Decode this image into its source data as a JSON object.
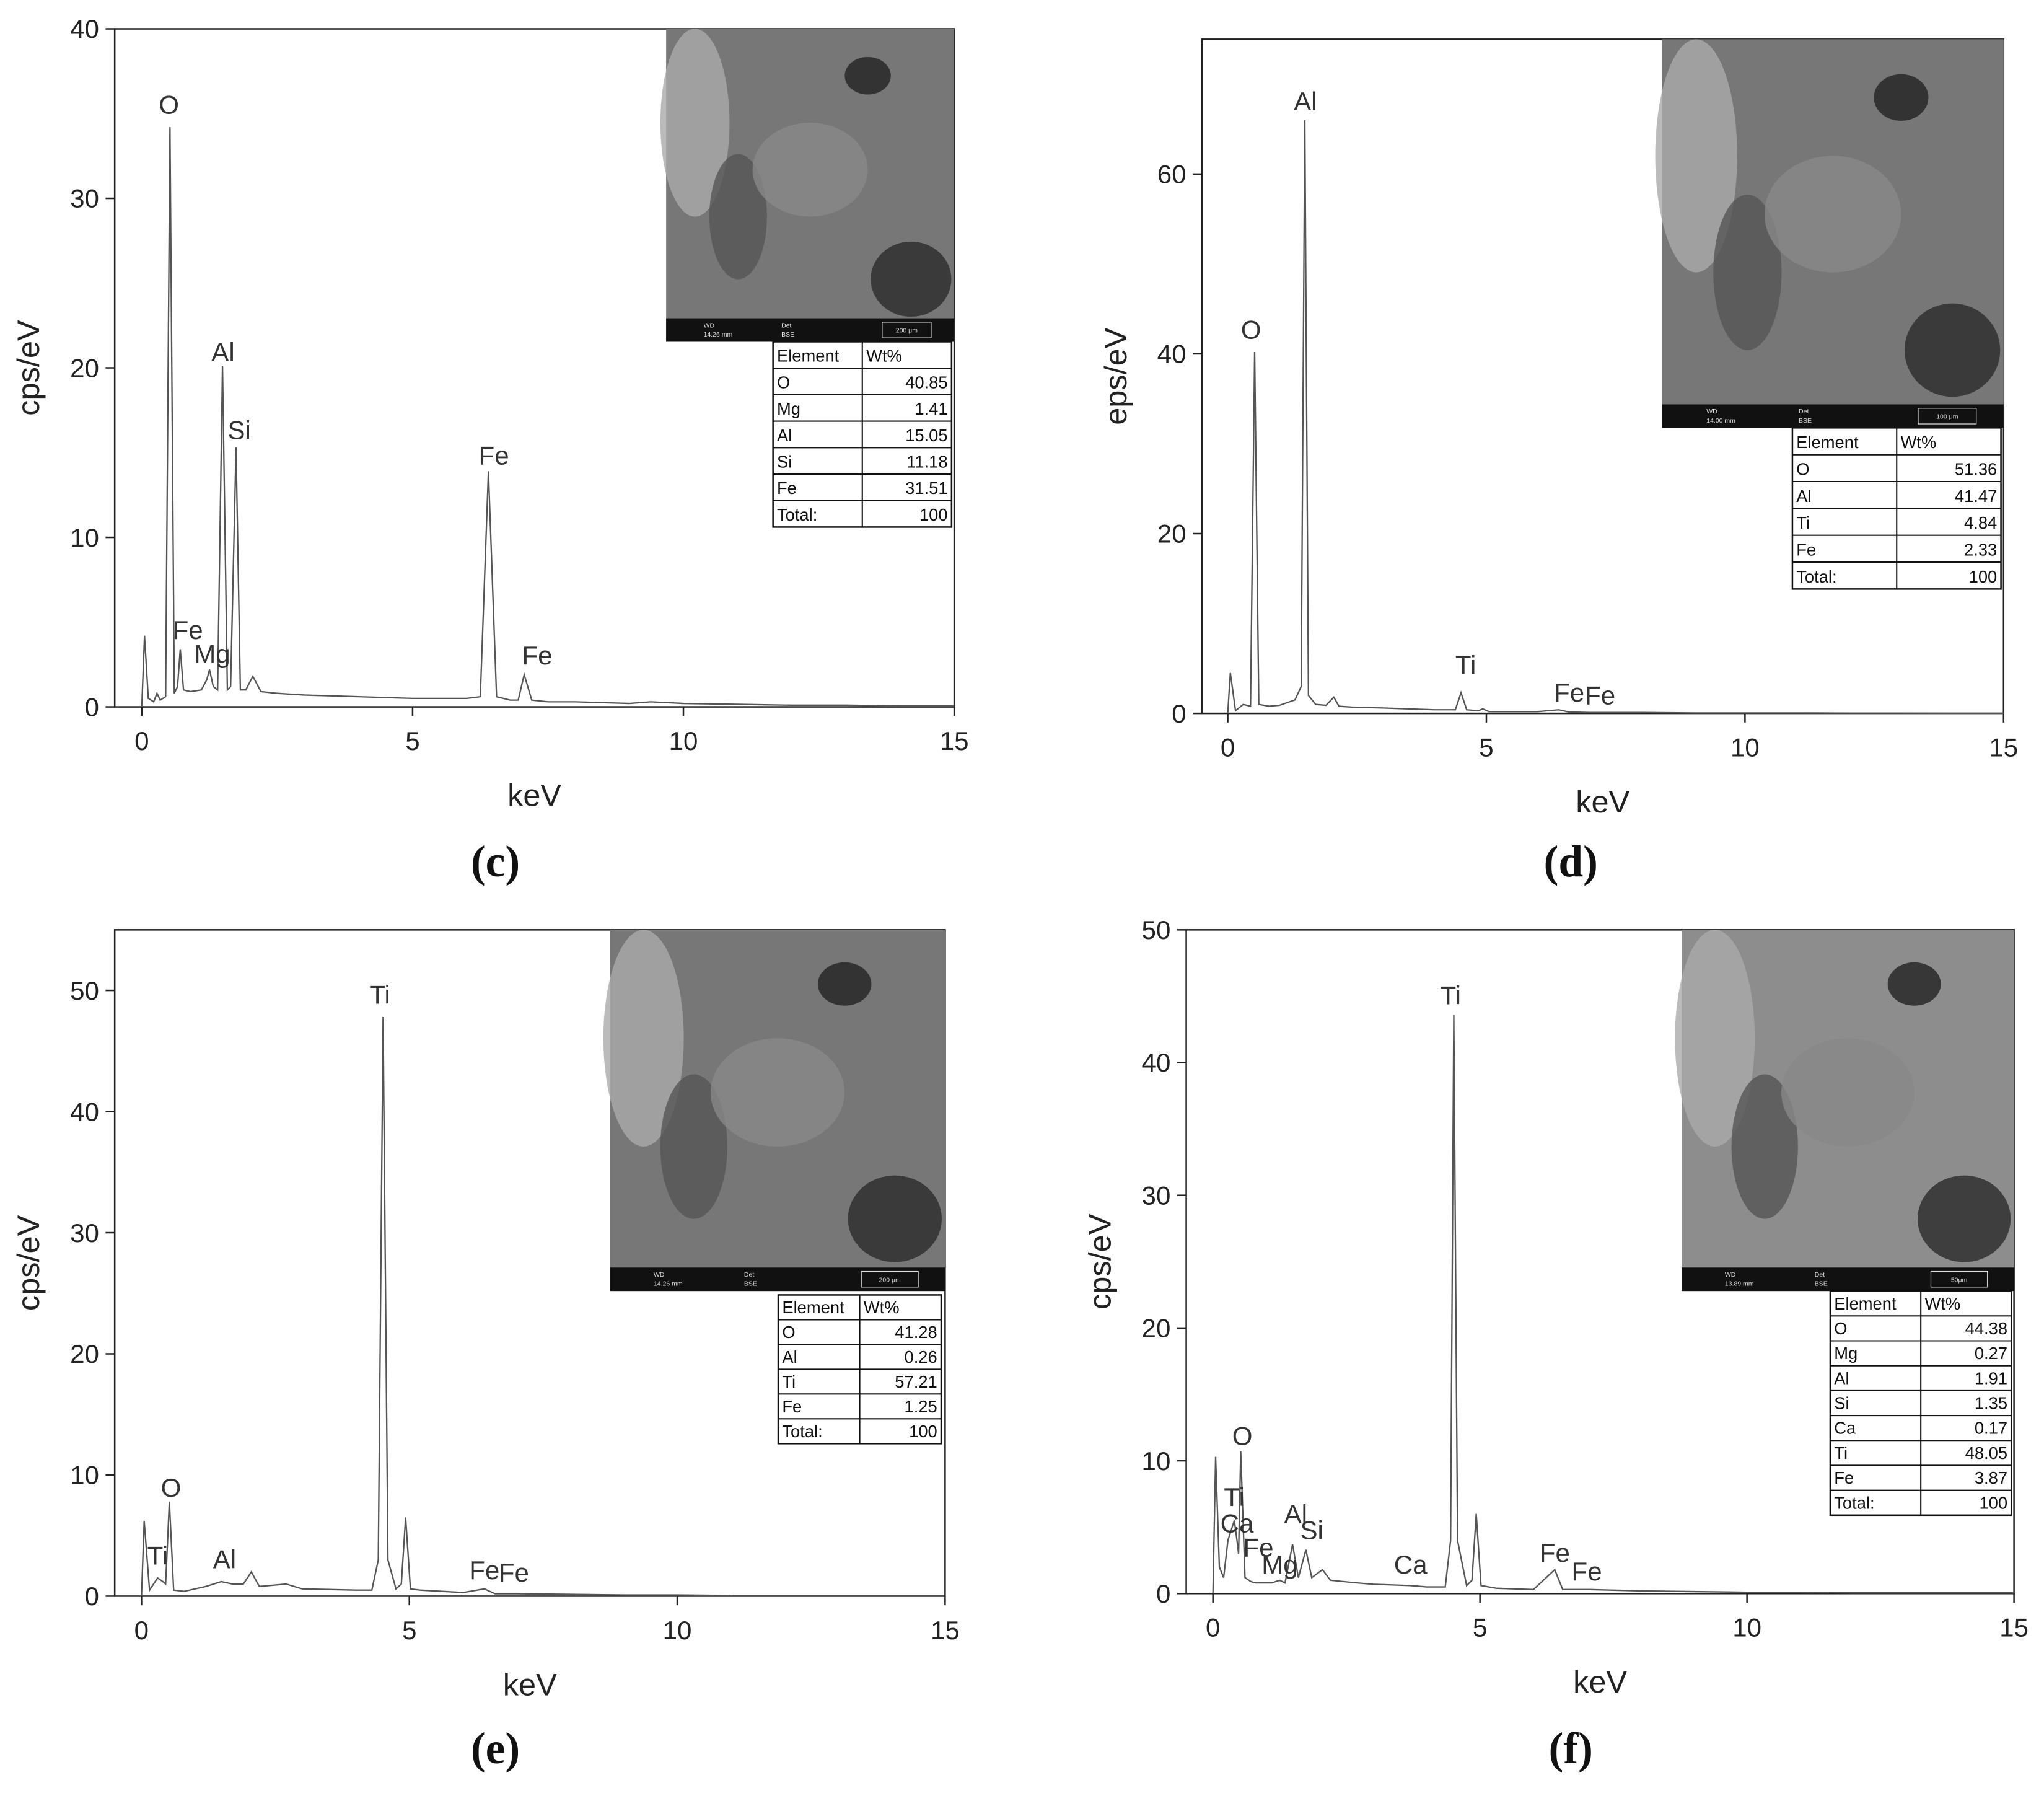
{
  "chart_data": [
    {
      "type": "line",
      "label": "(c)",
      "xlabel": "keV",
      "ylabel": "cps/eV",
      "color": "#555555",
      "xlim": [
        -0.5,
        15
      ],
      "ylim": [
        0,
        40
      ],
      "xticks": [
        0,
        5,
        10,
        15
      ],
      "yticks": [
        0,
        10,
        20,
        30,
        40
      ],
      "x": [
        0,
        0.05,
        0.12,
        0.22,
        0.28,
        0.34,
        0.44,
        0.52,
        0.6,
        0.66,
        0.71,
        0.77,
        0.9,
        1.1,
        1.2,
        1.25,
        1.32,
        1.4,
        1.49,
        1.58,
        1.64,
        1.74,
        1.82,
        1.92,
        2.05,
        2.2,
        2.5,
        3,
        4,
        5,
        5.5,
        6,
        6.25,
        6.4,
        6.55,
        6.8,
        6.95,
        7.06,
        7.2,
        7.5,
        8,
        9,
        9.4,
        10,
        11,
        12,
        13,
        14,
        15
      ],
      "values": [
        0,
        4.2,
        0.5,
        0.3,
        0.8,
        0.4,
        0.6,
        34.2,
        0.8,
        1.2,
        3.4,
        1.0,
        0.9,
        1.0,
        1.6,
        2.2,
        1.2,
        1.0,
        20.1,
        1.0,
        1.2,
        15.3,
        1.0,
        1.0,
        1.8,
        0.9,
        0.8,
        0.7,
        0.6,
        0.5,
        0.5,
        0.5,
        0.6,
        13.9,
        0.6,
        0.4,
        0.4,
        1.9,
        0.4,
        0.3,
        0.3,
        0.2,
        0.3,
        0.2,
        0.15,
        0.1,
        0.1,
        0.05,
        0.05
      ],
      "annotations": [
        {
          "text": "O",
          "x": 0.5,
          "y": 35
        },
        {
          "text": "Al",
          "x": 1.5,
          "y": 20.4
        },
        {
          "text": "Si",
          "x": 1.8,
          "y": 15.8
        },
        {
          "text": "Fe",
          "x": 0.85,
          "y": 4.0
        },
        {
          "text": "Mg",
          "x": 1.3,
          "y": 2.6
        },
        {
          "text": "Fe",
          "x": 6.5,
          "y": 14.3
        },
        {
          "text": "Fe",
          "x": 7.3,
          "y": 2.5
        }
      ],
      "inset": {
        "wd_label": "WD",
        "wd": "14.26 mm",
        "det_label": "Det",
        "detector": "BSE",
        "scale": "200 μm"
      },
      "table": {
        "header": [
          "Element",
          "Wt%"
        ],
        "rows": [
          [
            "O",
            40.85
          ],
          [
            "Mg",
            1.41
          ],
          [
            "Al",
            15.05
          ],
          [
            "Si",
            11.18
          ],
          [
            "Fe",
            31.51
          ],
          [
            "Total:",
            100
          ]
        ]
      }
    },
    {
      "type": "line",
      "label": "(d)",
      "xlabel": "keV",
      "ylabel": "eps/eV",
      "color": "#555555",
      "xlim": [
        -0.5,
        15
      ],
      "ylim": [
        0,
        75
      ],
      "xticks": [
        0,
        5,
        10,
        15
      ],
      "yticks": [
        0,
        20,
        40,
        60
      ],
      "x": [
        0,
        0.05,
        0.15,
        0.3,
        0.44,
        0.52,
        0.6,
        0.8,
        1.0,
        1.3,
        1.42,
        1.49,
        1.56,
        1.7,
        1.9,
        2.05,
        2.15,
        2.4,
        3,
        4,
        4.4,
        4.51,
        4.62,
        4.85,
        4.93,
        5.05,
        5.5,
        6,
        6.4,
        6.6,
        7,
        8,
        9,
        10,
        11,
        12,
        13,
        14,
        15
      ],
      "values": [
        0,
        4.5,
        0.3,
        1.0,
        0.8,
        40.2,
        1.0,
        0.8,
        0.9,
        1.5,
        3,
        66,
        2,
        1.0,
        0.9,
        1.8,
        0.8,
        0.7,
        0.6,
        0.4,
        0.4,
        2.3,
        0.4,
        0.3,
        0.5,
        0.2,
        0.2,
        0.2,
        0.4,
        0.15,
        0.1,
        0.1,
        0.05,
        0.05,
        0.05,
        0.03,
        0.03,
        0.02,
        0.02
      ],
      "annotations": [
        {
          "text": "Al",
          "x": 1.5,
          "y": 67.1
        },
        {
          "text": "O",
          "x": 0.45,
          "y": 41.7
        },
        {
          "text": "Ti",
          "x": 4.6,
          "y": 4.4
        },
        {
          "text": "Fe",
          "x": 6.6,
          "y": 1.3
        },
        {
          "text": "Fe",
          "x": 7.2,
          "y": 1.0
        }
      ],
      "inset": {
        "wd_label": "WD",
        "wd": "14.00 mm",
        "det_label": "Det",
        "detector": "BSE",
        "scale": "100 μm"
      },
      "table": {
        "header": [
          "Element",
          "Wt%"
        ],
        "rows": [
          [
            "O",
            51.36
          ],
          [
            "Al",
            41.47
          ],
          [
            "Ti",
            4.84
          ],
          [
            "Fe",
            2.33
          ],
          [
            "Total:",
            100
          ]
        ]
      }
    },
    {
      "type": "line",
      "label": "(e)",
      "xlabel": "keV",
      "ylabel": "cps/eV",
      "color": "#555555",
      "xlim": [
        -0.5,
        15
      ],
      "ylim": [
        0,
        55
      ],
      "xticks": [
        0,
        5,
        10,
        15
      ],
      "yticks": [
        0,
        10,
        20,
        30,
        40,
        50
      ],
      "x": [
        0,
        0.05,
        0.15,
        0.3,
        0.4,
        0.45,
        0.52,
        0.6,
        0.8,
        1.2,
        1.49,
        1.7,
        1.9,
        2.05,
        2.2,
        2.7,
        3,
        4,
        4.3,
        4.42,
        4.51,
        4.6,
        4.75,
        4.85,
        4.93,
        5.02,
        5.2,
        6,
        6.4,
        6.6,
        7,
        8,
        9,
        10,
        11
      ],
      "values": [
        0,
        6.2,
        0.5,
        1.5,
        1.2,
        1.0,
        7.8,
        0.5,
        0.4,
        0.8,
        1.2,
        1.0,
        1.0,
        2.0,
        0.8,
        1.0,
        0.6,
        0.5,
        0.5,
        3,
        47.8,
        3,
        0.6,
        1,
        6.5,
        0.6,
        0.5,
        0.3,
        0.6,
        0.2,
        0.2,
        0.15,
        0.1,
        0.1,
        0.05
      ],
      "annotations": [
        {
          "text": "Ti",
          "x": 4.45,
          "y": 48.9
        },
        {
          "text": "O",
          "x": 0.55,
          "y": 8.2
        },
        {
          "text": "Ti",
          "x": 0.3,
          "y": 2.6
        },
        {
          "text": "Al",
          "x": 1.55,
          "y": 2.3
        },
        {
          "text": "Fe",
          "x": 6.4,
          "y": 1.4
        },
        {
          "text": "Fe",
          "x": 6.95,
          "y": 1.2
        }
      ],
      "inset": {
        "wd_label": "WD",
        "wd": "14.26 mm",
        "det_label": "Det",
        "detector": "BSE",
        "scale": "200 μm"
      },
      "table": {
        "header": [
          "Element",
          "Wt%"
        ],
        "rows": [
          [
            "O",
            41.28
          ],
          [
            "Al",
            0.26
          ],
          [
            "Ti",
            57.21
          ],
          [
            "Fe",
            1.25
          ],
          [
            "Total:",
            100
          ]
        ]
      }
    },
    {
      "type": "line",
      "label": "(f)",
      "xlabel": "keV",
      "ylabel": "cps/eV",
      "color": "#555555",
      "xlim": [
        -0.5,
        15
      ],
      "ylim": [
        0,
        50
      ],
      "xticks": [
        0,
        5,
        10,
        15
      ],
      "yticks": [
        0,
        10,
        20,
        30,
        40,
        50
      ],
      "x": [
        0,
        0.05,
        0.12,
        0.2,
        0.28,
        0.4,
        0.45,
        0.48,
        0.52,
        0.6,
        0.71,
        0.8,
        1.1,
        1.25,
        1.35,
        1.49,
        1.6,
        1.74,
        1.85,
        2.05,
        2.2,
        2.7,
        3,
        3.69,
        4,
        4.35,
        4.45,
        4.51,
        4.58,
        4.75,
        4.85,
        4.93,
        5.02,
        5.3,
        6,
        6.4,
        6.55,
        7.06,
        8,
        9,
        10,
        11,
        12,
        13,
        14,
        15
      ],
      "values": [
        0,
        10.3,
        2,
        1.2,
        4,
        5.5,
        4,
        3,
        10.7,
        1.2,
        0.9,
        0.8,
        0.8,
        1.0,
        0.8,
        3.7,
        1.2,
        3.3,
        1.2,
        1.8,
        1.0,
        0.8,
        0.7,
        0.6,
        0.5,
        0.5,
        4,
        43.6,
        4,
        0.6,
        1,
        6.0,
        0.6,
        0.4,
        0.3,
        1.8,
        0.3,
        0.3,
        0.2,
        0.15,
        0.1,
        0.1,
        0.05,
        0.05,
        0.05,
        0.05
      ],
      "annotations": [
        {
          "text": "Ti",
          "x": 4.45,
          "y": 44.4
        },
        {
          "text": "O",
          "x": 0.55,
          "y": 11.2
        },
        {
          "text": "Ti",
          "x": 0.4,
          "y": 6.6
        },
        {
          "text": "Ca",
          "x": 0.45,
          "y": 4.6
        },
        {
          "text": "Fe",
          "x": 0.85,
          "y": 2.8
        },
        {
          "text": "Mg",
          "x": 1.25,
          "y": 1.5
        },
        {
          "text": "Al",
          "x": 1.55,
          "y": 5.3
        },
        {
          "text": "Si",
          "x": 1.85,
          "y": 4.1
        },
        {
          "text": "Ca",
          "x": 3.7,
          "y": 1.5
        },
        {
          "text": "Fe",
          "x": 6.4,
          "y": 2.4
        },
        {
          "text": "Fe",
          "x": 7.0,
          "y": 1.0
        }
      ],
      "inset": {
        "wd_label": "WD",
        "wd": "13.89 mm",
        "det_label": "Det",
        "detector": "BSE",
        "scale": "50μm"
      },
      "table": {
        "header": [
          "Element",
          "Wt%"
        ],
        "rows": [
          [
            "O",
            44.38
          ],
          [
            "Mg",
            0.27
          ],
          [
            "Al",
            1.91
          ],
          [
            "Si",
            1.35
          ],
          [
            "Ca",
            0.17
          ],
          [
            "Ti",
            48.05
          ],
          [
            "Fe",
            3.87
          ],
          [
            "Total:",
            100
          ]
        ]
      }
    }
  ]
}
